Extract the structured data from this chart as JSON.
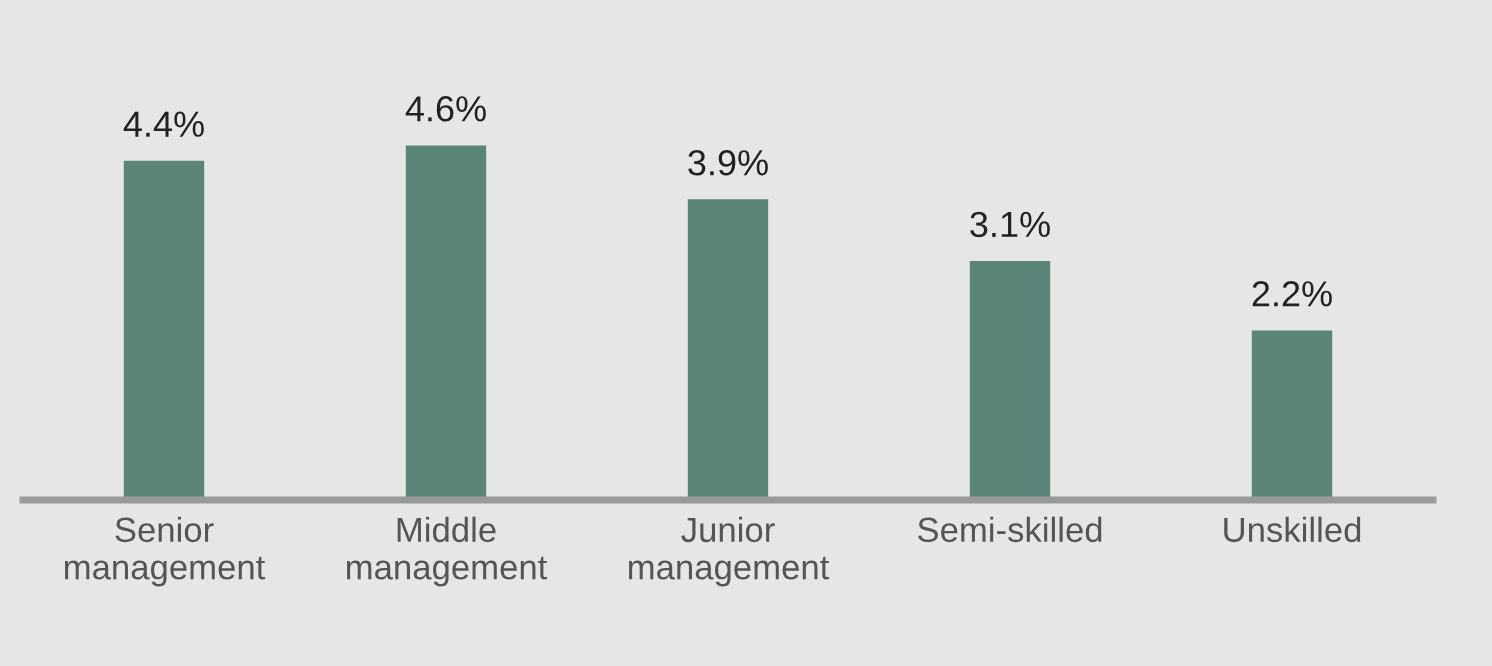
{
  "chart_data": {
    "type": "bar",
    "categories": [
      "Senior\nmanagement",
      "Middle\nmanagement",
      "Junior\nmanagement",
      "Semi-skilled",
      "Unskilled"
    ],
    "values": [
      4.4,
      4.6,
      3.9,
      3.1,
      2.2
    ],
    "value_labels": [
      "4.4%",
      "4.6%",
      "3.9%",
      "3.1%",
      "2.2%"
    ],
    "color": "#5b8479",
    "grid": false
  }
}
